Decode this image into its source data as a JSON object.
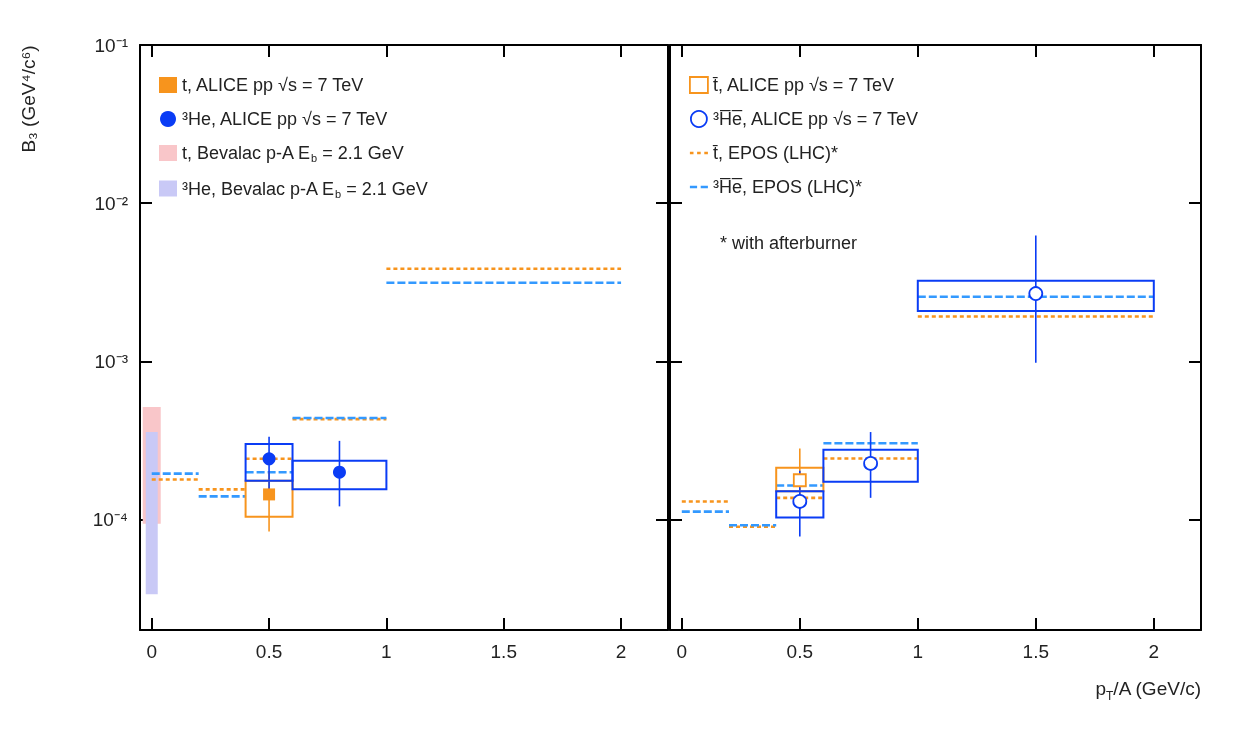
{
  "chart_data": [
    {
      "type": "scatter",
      "ylabel": "B₃ (GeV⁴/c⁶)",
      "log": "y",
      "grid": false,
      "legend": "top left",
      "xlim": [
        -0.05,
        2.2
      ],
      "xticks": [
        0,
        0.5,
        1,
        1.5,
        2
      ],
      "ylim": [
        2e-05,
        0.1
      ],
      "yticks": [
        {
          "value": 0.0001,
          "label": "10⁻⁴"
        },
        {
          "value": 0.001,
          "label": "10⁻³"
        },
        {
          "value": 0.01,
          "label": "10⁻²"
        },
        {
          "value": 0.1,
          "label": "10⁻¹"
        }
      ],
      "series": [
        {
          "marker": "square",
          "color": "#f7941d",
          "name": "t, ALICE pp √s = 7 TeV",
          "x": [
            0.5
          ],
          "values": [
            0.000144
          ],
          "errors": [
            [
              8.4e-05,
              0.0002
            ]
          ]
        },
        {
          "marker": "circle",
          "color": "#0a3cf5",
          "name": "³He, ALICE pp √s = 7 TeV",
          "x": [
            0.5,
            0.8
          ],
          "values": [
            0.000242,
            0.000199
          ],
          "errors": [
            [
              0.000151,
              0.000333
            ],
            [
              0.000121,
              0.000314
            ]
          ]
        },
        {
          "type": "bar",
          "color": "#f9c6c9",
          "name": "t, Bevalac p-A E$_{b}$ = 2.1 GeV",
          "x": [
            0
          ],
          "base": [
            9.4e-05
          ],
          "values": [
            0.00042
          ]
        },
        {
          "type": "bar",
          "color": "#c9c9f6",
          "name": "³He, Bevalac p-A E$_{b}$ = 2.1 GeV",
          "x": [
            0
          ],
          "base": [
            3.37e-05
          ],
          "values": [
            0.000323
          ]
        },
        {
          "type": "line",
          "color": "#f7941d",
          "line_style": "dotted",
          "x": [
            0,
            0.2
          ],
          "values": [
            0.000179,
            0.000179
          ]
        },
        {
          "type": "line",
          "color": "#f7941d",
          "line_style": "dotted",
          "x": [
            0.2,
            0.4
          ],
          "values": [
            0.000155,
            0.000155
          ]
        },
        {
          "type": "line",
          "color": "#f7941d",
          "line_style": "dotted",
          "x": [
            0.4,
            0.6
          ],
          "values": [
            0.000242,
            0.000242
          ]
        },
        {
          "type": "line",
          "color": "#f7941d",
          "line_style": "dotted",
          "x": [
            0.6,
            1
          ],
          "values": [
            0.000431,
            0.000431
          ]
        },
        {
          "type": "line",
          "color": "#f7941d",
          "line_style": "dotted",
          "x": [
            1,
            2
          ],
          "values": [
            0.00385,
            0.00385
          ]
        },
        {
          "type": "line",
          "color": "#3399ff",
          "line_style": "dashed",
          "x": [
            0,
            0.2
          ],
          "values": [
            0.000195,
            0.000195
          ]
        },
        {
          "type": "line",
          "color": "#3399ff",
          "line_style": "dashed",
          "x": [
            0.2,
            0.4
          ],
          "values": [
            0.00014,
            0.00014
          ]
        },
        {
          "type": "line",
          "color": "#3399ff",
          "line_style": "dashed",
          "x": [
            0.4,
            0.6
          ],
          "values": [
            0.000199,
            0.000199
          ]
        },
        {
          "type": "line",
          "color": "#3399ff",
          "line_style": "dashed",
          "x": [
            0.6,
            1
          ],
          "values": [
            0.000438,
            0.000438
          ]
        },
        {
          "type": "line",
          "color": "#3399ff",
          "line_style": "dashed",
          "x": [
            1,
            2
          ],
          "values": [
            0.00314,
            0.00314
          ]
        },
        {
          "type": "histogram",
          "color": "#f7941d",
          "line_style": "solid",
          "bins": [
            0.4,
            0.6
          ],
          "base": [
            0.000104
          ],
          "values": [
            7.2e-05
          ]
        },
        {
          "type": "histogram",
          "color": "#0a3cf5",
          "line_style": "solid",
          "bins": [
            0.4,
            0.6,
            1
          ],
          "base": [
            0.000176,
            0.000155
          ],
          "values": [
            0.000124,
            8e-05
          ]
        }
      ]
    },
    {
      "type": "scatter",
      "xlabel": "p$_{T}$/A (GeV/c)",
      "log": "y",
      "grid": false,
      "legend": "top left",
      "tick_labels": "x",
      "annotations": [
        "* with afterburner"
      ],
      "xlim": [
        -0.05,
        2.2
      ],
      "xticks": [
        0,
        0.5,
        1,
        1.5,
        2
      ],
      "ylim": [
        2e-05,
        0.1
      ],
      "yticks": [
        {
          "value": 0.0001,
          "label": null
        },
        {
          "value": 0.001,
          "label": null
        },
        {
          "value": 0.01,
          "label": null
        },
        {
          "value": 0.1,
          "label": null
        }
      ],
      "series": [
        {
          "marker": "square",
          "line_style": "solid",
          "color": "#f7941d",
          "name": "t̄, ALICE pp √s = 7 TeV",
          "x": [
            0.5
          ],
          "values": [
            0.000177
          ],
          "errors": [
            [
              0.000115,
              0.000281
            ]
          ]
        },
        {
          "marker": "circle",
          "line_style": "solid",
          "color": "#0a3cf5",
          "name": "³H̅e̅, ALICE pp √s = 7 TeV",
          "x": [
            0.5,
            0.8,
            1.5
          ],
          "values": [
            0.00013,
            0.000226,
            0.00268
          ],
          "errors": [
            [
              7.8e-05,
              0.000203
            ],
            [
              0.000137,
              0.000357
            ],
            [
              0.00098,
              0.00624
            ]
          ]
        },
        {
          "type": "line",
          "color": "#f7941d",
          "line_style": "dotted",
          "name": "t̄, EPOS (LHC)*",
          "x": [
            0,
            0.2
          ],
          "values": [
            0.00013,
            0.00013
          ]
        },
        {
          "type": "line",
          "color": "#3399ff",
          "line_style": "dashed",
          "name": "³H̅e̅, EPOS (LHC)*",
          "x": [
            0,
            0.2
          ],
          "values": [
            0.000112,
            0.000112
          ]
        },
        {
          "type": "line",
          "color": "#f7941d",
          "line_style": "dotted",
          "x": [
            0.2,
            0.4
          ],
          "values": [
            9e-05,
            9e-05
          ]
        },
        {
          "type": "line",
          "color": "#f7941d",
          "line_style": "dotted",
          "x": [
            0.4,
            0.6
          ],
          "values": [
            0.000137,
            0.000137
          ]
        },
        {
          "type": "line",
          "color": "#f7941d",
          "line_style": "dotted",
          "x": [
            0.6,
            1
          ],
          "values": [
            0.000243,
            0.000243
          ]
        },
        {
          "type": "line",
          "color": "#f7941d",
          "line_style": "dotted",
          "x": [
            1,
            2
          ],
          "values": [
            0.00192,
            0.00192
          ]
        },
        {
          "type": "line",
          "color": "#3399ff",
          "line_style": "dashed",
          "x": [
            0.2,
            0.4
          ],
          "values": [
            9.2e-05,
            9.2e-05
          ]
        },
        {
          "type": "line",
          "color": "#3399ff",
          "line_style": "dashed",
          "x": [
            0.4,
            0.6
          ],
          "values": [
            0.000164,
            0.000164
          ]
        },
        {
          "type": "line",
          "color": "#3399ff",
          "line_style": "dashed",
          "x": [
            0.6,
            1
          ],
          "values": [
            0.000303,
            0.000303
          ]
        },
        {
          "type": "line",
          "color": "#3399ff",
          "line_style": "dashed",
          "x": [
            1,
            2
          ],
          "values": [
            0.00256,
            0.00256
          ]
        },
        {
          "type": "histogram",
          "color": "#f7941d",
          "line_style": "solid",
          "bins": [
            0.4,
            0.6
          ],
          "base": [
            0.000151
          ],
          "values": [
            6.1e-05
          ]
        },
        {
          "type": "histogram",
          "color": "#0a3cf5",
          "line_style": "solid",
          "bins": [
            0.4,
            0.6,
            1,
            2
          ],
          "base": [
            0.000103,
            0.000173,
            0.00208
          ],
          "values": [
            4.8e-05,
            0.000103,
            0.00115
          ]
        }
      ]
    }
  ]
}
